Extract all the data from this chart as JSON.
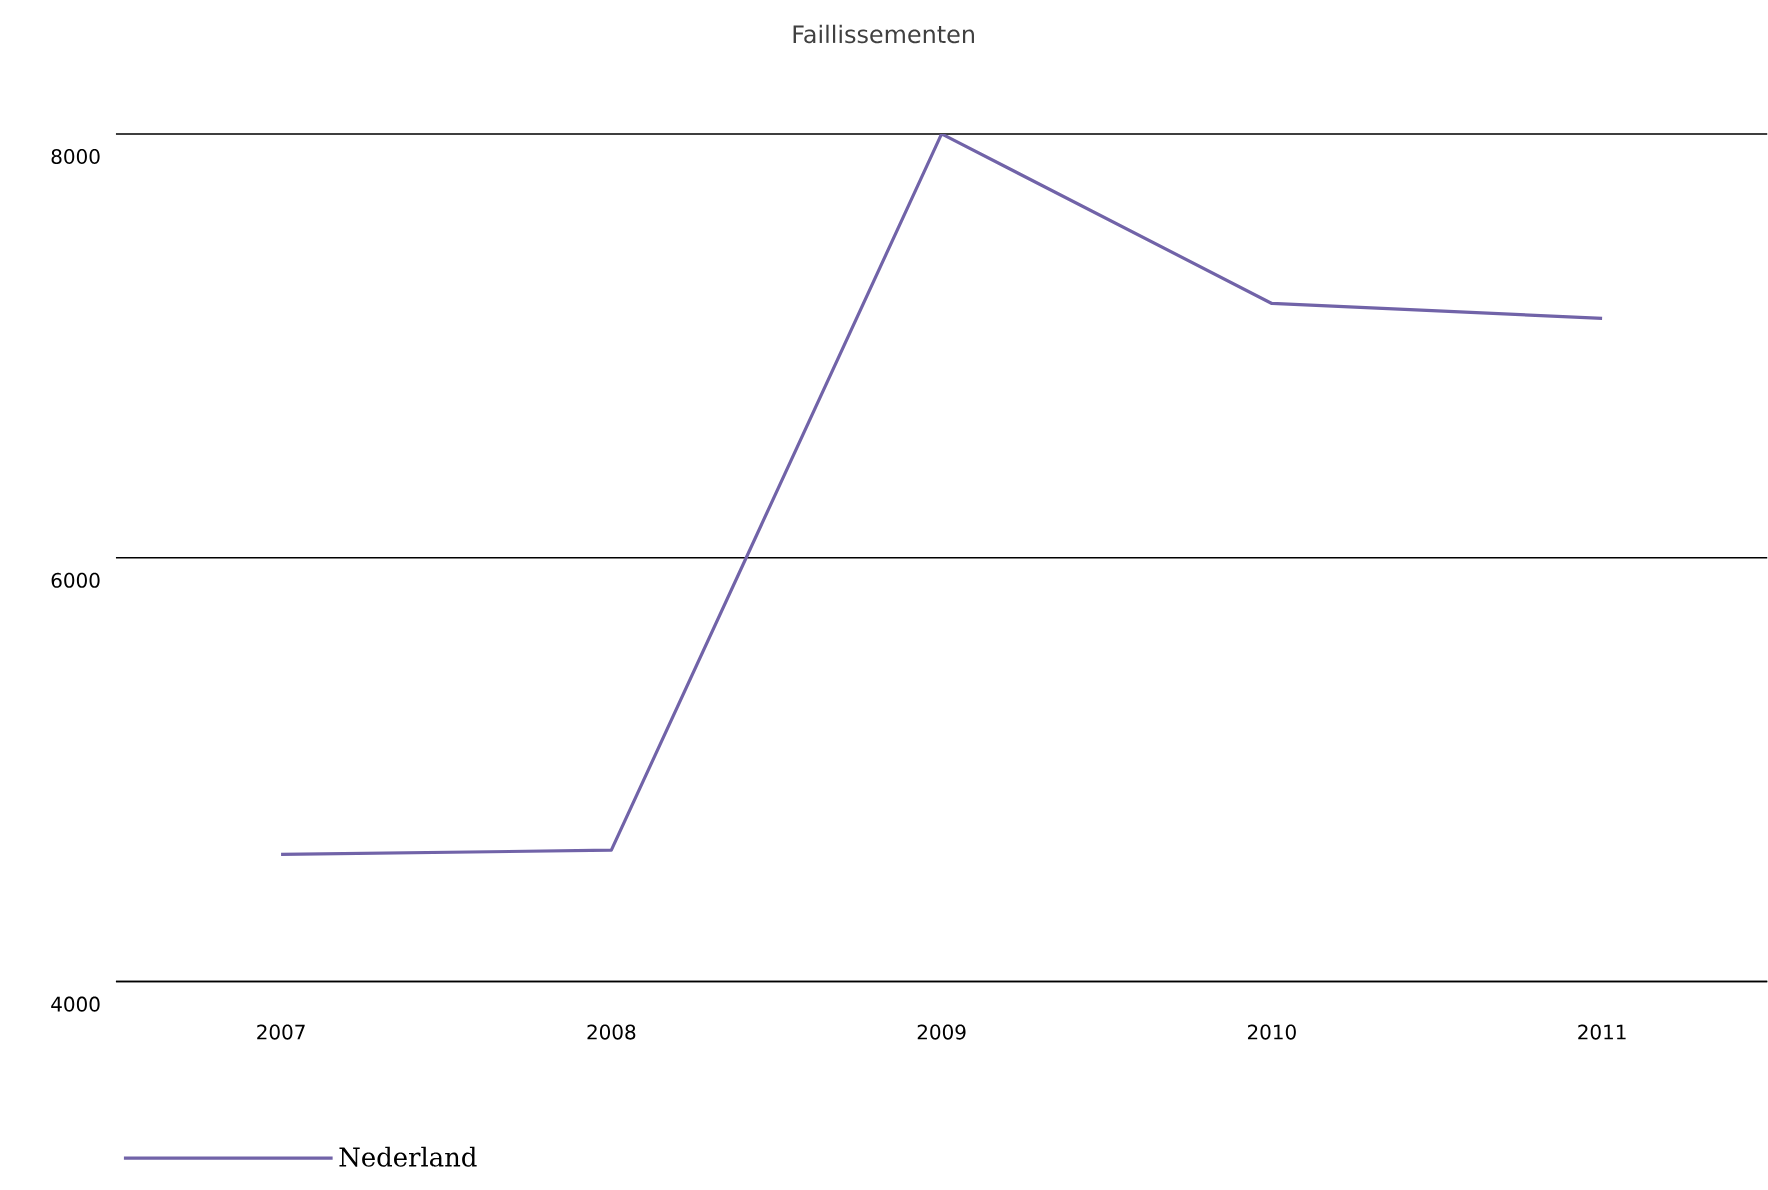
{
  "chart_data": {
    "type": "line",
    "title": "Faillissementen",
    "categories": [
      "2007",
      "2008",
      "2009",
      "2010",
      "2011"
    ],
    "series": [
      {
        "name": "Nederland",
        "color": "#7163a8",
        "values": [
          4600,
          4620,
          8000,
          7200,
          7130
        ]
      }
    ],
    "ylim": [
      4000,
      8000
    ],
    "yticks": [
      4000,
      6000,
      8000
    ],
    "grid": "y",
    "legend": "bottom left"
  }
}
